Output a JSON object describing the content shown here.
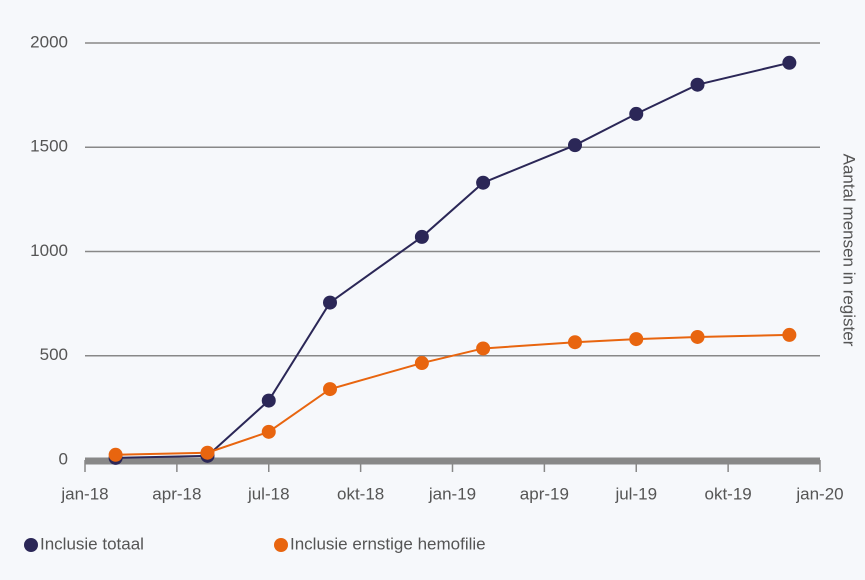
{
  "chart_data": {
    "type": "line",
    "x": [
      "2018-02",
      "2018-05",
      "2018-07",
      "2018-09",
      "2018-12",
      "2019-02",
      "2019-05",
      "2019-07",
      "2019-09",
      "2019-12"
    ],
    "series": [
      {
        "name": "Inclusie totaal",
        "color": "#2b2757",
        "values": [
          10,
          20,
          285,
          755,
          1070,
          1330,
          1510,
          1660,
          1800,
          1905
        ]
      },
      {
        "name": "Inclusie ernstige hemofilie",
        "color": "#e8650f",
        "values": [
          25,
          35,
          135,
          340,
          465,
          535,
          565,
          580,
          590,
          600
        ]
      }
    ],
    "xlim": [
      "2018-01",
      "2020-01"
    ],
    "xticks": [
      {
        "value": "2018-01",
        "label": "jan-18"
      },
      {
        "value": "2018-04",
        "label": "apr-18"
      },
      {
        "value": "2018-07",
        "label": "jul-18"
      },
      {
        "value": "2018-10",
        "label": "okt-18"
      },
      {
        "value": "2019-01",
        "label": "jan-19"
      },
      {
        "value": "2019-04",
        "label": "apr-19"
      },
      {
        "value": "2019-07",
        "label": "jul-19"
      },
      {
        "value": "2019-10",
        "label": "okt-19"
      },
      {
        "value": "2020-01",
        "label": "jan-20"
      }
    ],
    "ylim": [
      0,
      2000
    ],
    "yticks": [
      0,
      500,
      1000,
      1500,
      2000
    ],
    "y_axis_label": "Aantal mensen in register",
    "grid": true,
    "legend": "bottom-left"
  }
}
